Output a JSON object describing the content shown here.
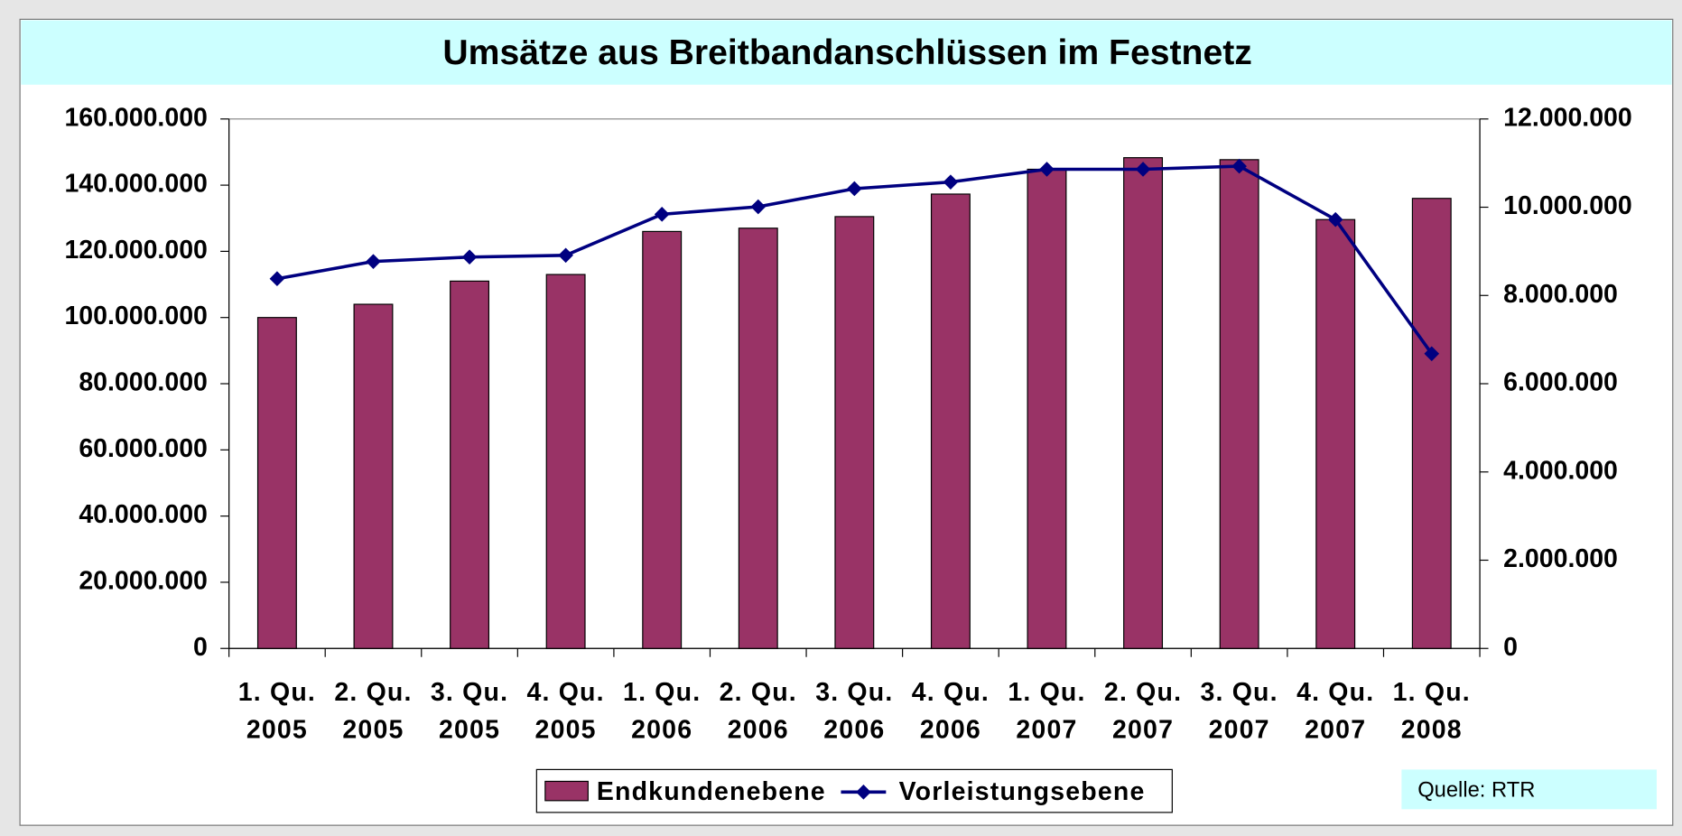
{
  "chart_data": {
    "type": "bar",
    "title": "Umsätze aus Breitbandanschlüssen im Festnetz",
    "categories": [
      "1. Qu. 2005",
      "2. Qu. 2005",
      "3. Qu. 2005",
      "4. Qu. 2005",
      "1. Qu. 2006",
      "2. Qu. 2006",
      "3. Qu. 2006",
      "4. Qu. 2006",
      "1. Qu. 2007",
      "2. Qu. 2007",
      "3. Qu. 2007",
      "4. Qu. 2007",
      "1. Qu. 2008"
    ],
    "series": [
      {
        "name": "Endkundenebene",
        "type": "bar",
        "color": "#993366",
        "values": [
          100000000,
          104000000,
          111000000,
          113000000,
          126000000,
          127000000,
          130500000,
          137300000,
          144800000,
          148300000,
          147700000,
          129600000,
          136000000
        ]
      },
      {
        "name": "Vorleistungsebene",
        "type": "line",
        "axis": "y2",
        "color": "#000080",
        "values": [
          8380000,
          8770000,
          8870000,
          8910000,
          9840000,
          10010000,
          10420000,
          10570000,
          10860000,
          10860000,
          10930000,
          9720000,
          6680000
        ]
      }
    ],
    "ylim": [
      0,
      160000000
    ],
    "yticks": [
      0,
      {
        "value": 20000000,
        "label": "20.000.000"
      },
      {
        "value": 40000000,
        "label": "40.000.000"
      },
      {
        "value": 60000000,
        "label": "60.000.000"
      },
      {
        "value": 80000000,
        "label": "80.000.000"
      },
      {
        "value": 100000000,
        "label": "100.000.000"
      },
      {
        "value": 120000000,
        "label": "120.000.000"
      },
      {
        "value": 140000000,
        "label": "140.000.000"
      },
      {
        "value": 160000000,
        "label": "160.000.000"
      }
    ],
    "y2lim": [
      0,
      12000000
    ],
    "y2ticks": [
      0,
      {
        "value": 2000000,
        "label": "2.000.000"
      },
      {
        "value": 4000000,
        "label": "4.000.000"
      },
      {
        "value": 6000000,
        "label": "6.000.000"
      },
      {
        "value": 8000000,
        "label": "8.000.000"
      },
      {
        "value": 10000000,
        "label": "10.000.000"
      },
      {
        "value": 12000000,
        "label": "12.000.000"
      }
    ],
    "source": "Quelle: RTR"
  }
}
